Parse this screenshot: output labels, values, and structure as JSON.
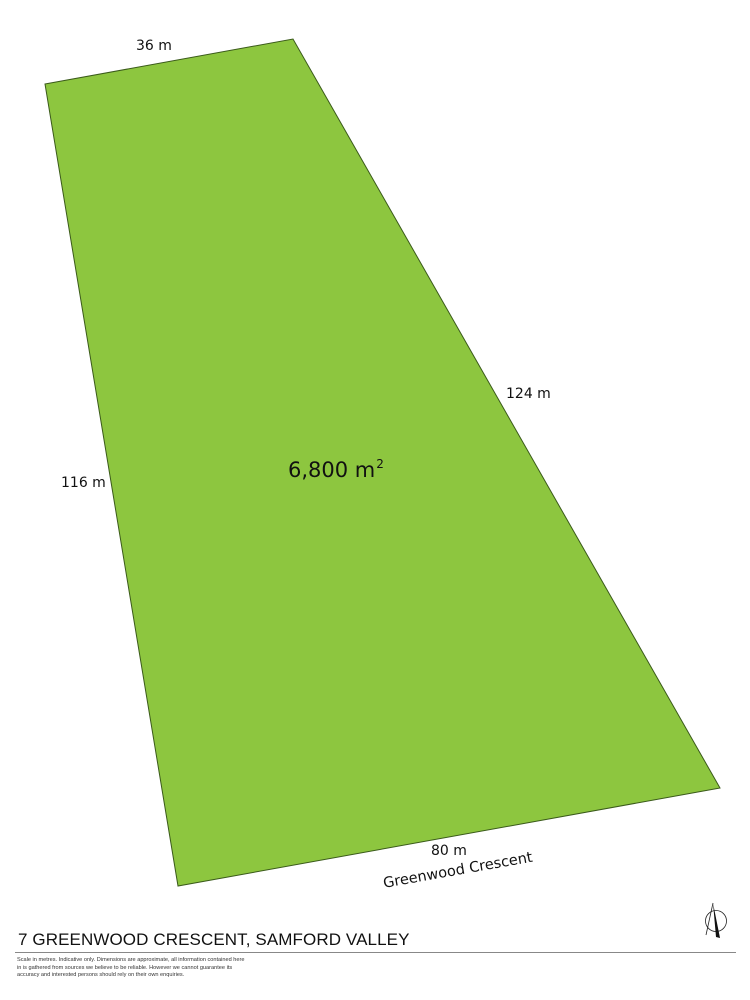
{
  "plan": {
    "lot_area": "6,800 m",
    "lot_area_unit_sup": "2",
    "fill_color": "#8dc63f",
    "boundaries": {
      "top": "36 m",
      "right": "124 m",
      "left": "116 m",
      "bottom": "80 m"
    },
    "street_name": "Greenwood Crescent"
  },
  "footer": {
    "address": "7 GREENWOOD CRESCENT, SAMFORD VALLEY",
    "disclaimer": "Scale in metres. Indicative only. Dimensions are approximate, all information contained here in is gathered from sources we believe to be reliable. However we cannot guarantee its accuracy and interested persons should rely on their own enquiries.",
    "north_icon": "north-arrow-icon"
  }
}
